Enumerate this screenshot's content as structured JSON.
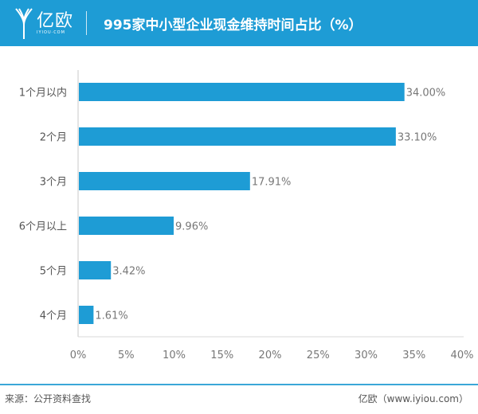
{
  "header": {
    "logo_text": "亿欧",
    "logo_sub": "IYIOU·COM",
    "title": "995家中小型企业现金维持时间占比（%）",
    "color": "#1e9cd5"
  },
  "chart_data": {
    "type": "bar",
    "orientation": "horizontal",
    "title": "995家中小型企业现金维持时间占比（%）",
    "categories": [
      "1个月以内",
      "2个月",
      "3个月",
      "6个月以上",
      "5个月",
      "4个月"
    ],
    "values": [
      34.0,
      33.1,
      17.91,
      9.96,
      3.42,
      1.61
    ],
    "data_labels": [
      "34.00%",
      "33.10%",
      "17.91%",
      "9.96%",
      "3.42%",
      "1.61%"
    ],
    "xlim": [
      0,
      40
    ],
    "x_ticks": [
      "0%",
      "5%",
      "10%",
      "15%",
      "20%",
      "25%",
      "30%",
      "35%",
      "40%"
    ],
    "grid": false,
    "bar_color": "#1e9cd5"
  },
  "footer": {
    "source": "来源：公开资料查找",
    "credit": "亿欧（www.iyiou.com）"
  }
}
